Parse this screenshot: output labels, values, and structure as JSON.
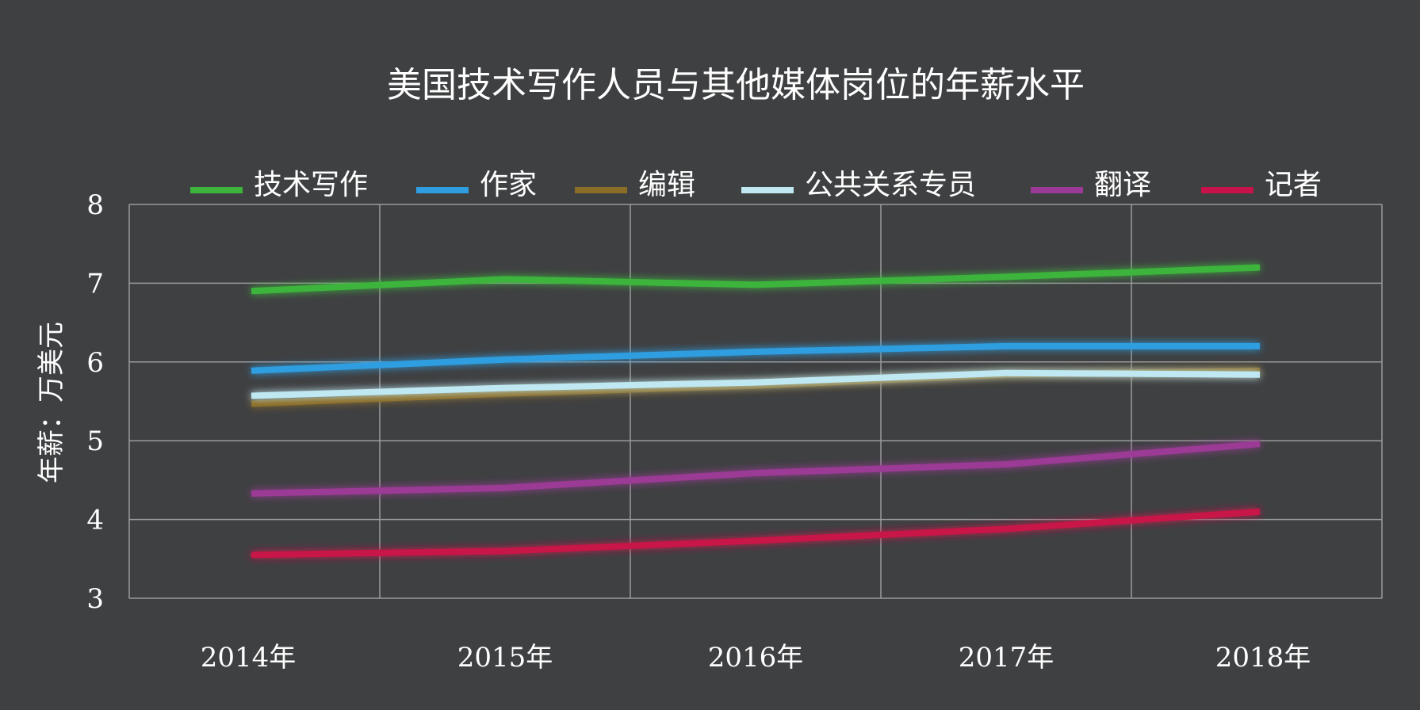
{
  "chart_data": {
    "type": "line",
    "title": "美国技术写作人员与其他媒体岗位的年薪水平",
    "ylabel": "年薪：万美元",
    "xlabel": "",
    "categories": [
      "2014年",
      "2015年",
      "2016年",
      "2017年",
      "2018年"
    ],
    "ylim": [
      3,
      8
    ],
    "yticks": [
      "3",
      "4",
      "5",
      "6",
      "7",
      "8"
    ],
    "grid": true,
    "legend_position": "top",
    "series": [
      {
        "name": "技术写作",
        "color": "#3db53d",
        "values": [
          6.9,
          7.05,
          6.98,
          7.08,
          7.2
        ]
      },
      {
        "name": "作家",
        "color": "#2f9ee0",
        "values": [
          5.89,
          6.03,
          6.13,
          6.2,
          6.2
        ]
      },
      {
        "name": "编辑",
        "color": "#8c6d27",
        "values": [
          5.47,
          5.6,
          5.7,
          5.84,
          5.89
        ]
      },
      {
        "name": "公共关系专员",
        "color": "#bfe8f2",
        "values": [
          5.57,
          5.67,
          5.74,
          5.86,
          5.84
        ]
      },
      {
        "name": "翻译",
        "color": "#9b3a96",
        "values": [
          4.33,
          4.4,
          4.59,
          4.7,
          4.96
        ]
      },
      {
        "name": "记者",
        "color": "#c8134a",
        "values": [
          3.55,
          3.6,
          3.73,
          3.88,
          4.1
        ]
      }
    ]
  }
}
